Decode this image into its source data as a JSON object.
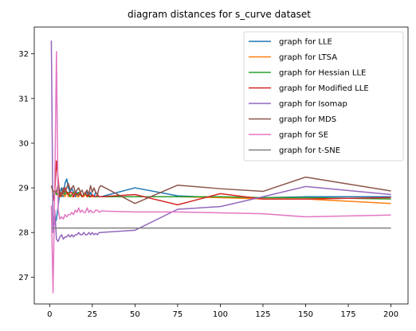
{
  "chart_data": {
    "type": "line",
    "title": "diagram distances for s_curve dataset",
    "xlabel": "",
    "ylabel": "",
    "xlim": [
      -9,
      210
    ],
    "ylim": [
      26.4,
      32.6
    ],
    "xticks": [
      0,
      25,
      50,
      75,
      100,
      125,
      150,
      175,
      200
    ],
    "yticks": [
      27,
      28,
      29,
      30,
      31,
      32
    ],
    "grid": false,
    "legend_position": "top-right",
    "series": [
      {
        "name": "graph for LLE",
        "color": "#1f77b4",
        "x": [
          2,
          3,
          4,
          5,
          6,
          7,
          8,
          9,
          10,
          11,
          12,
          13,
          14,
          15,
          16,
          17,
          18,
          19,
          20,
          21,
          22,
          23,
          24,
          25,
          26,
          27,
          28,
          29,
          30,
          50,
          75,
          100,
          125,
          150,
          200
        ],
        "y": [
          28.1,
          28.2,
          28.3,
          28.6,
          28.9,
          29.0,
          28.8,
          29.1,
          29.2,
          29.0,
          28.9,
          29.0,
          28.9,
          28.8,
          28.9,
          28.8,
          28.9,
          28.8,
          28.85,
          28.9,
          28.9,
          28.8,
          28.9,
          28.8,
          28.8,
          28.9,
          28.85,
          28.8,
          28.8,
          29.0,
          28.82,
          28.78,
          28.78,
          28.8,
          28.8
        ]
      },
      {
        "name": "graph for LTSA",
        "color": "#ff7f0e",
        "x": [
          2,
          3,
          4,
          5,
          6,
          7,
          8,
          9,
          10,
          11,
          12,
          13,
          14,
          15,
          16,
          17,
          18,
          19,
          20,
          21,
          22,
          23,
          24,
          25,
          26,
          27,
          28,
          29,
          30,
          50,
          75,
          100,
          125,
          150,
          200
        ],
        "y": [
          28.8,
          28.9,
          28.9,
          28.8,
          28.8,
          28.9,
          28.85,
          28.8,
          28.9,
          28.8,
          28.85,
          28.8,
          28.8,
          28.9,
          28.8,
          28.8,
          28.85,
          28.8,
          28.8,
          28.85,
          28.8,
          28.8,
          28.8,
          28.8,
          28.8,
          28.8,
          28.8,
          28.8,
          28.8,
          28.8,
          28.8,
          28.78,
          28.75,
          28.75,
          28.65
        ]
      },
      {
        "name": "graph for Hessian LLE",
        "color": "#2ca02c",
        "x": [
          2,
          3,
          4,
          5,
          6,
          7,
          8,
          9,
          10,
          11,
          12,
          13,
          14,
          15,
          16,
          17,
          18,
          19,
          20,
          21,
          22,
          23,
          24,
          25,
          26,
          27,
          28,
          29,
          30,
          50,
          75,
          100,
          125,
          150,
          200
        ],
        "y": [
          28.8,
          28.9,
          28.85,
          28.9,
          28.8,
          28.9,
          28.95,
          28.85,
          28.9,
          28.9,
          28.8,
          28.85,
          28.9,
          28.85,
          28.85,
          28.9,
          28.85,
          28.8,
          28.85,
          28.85,
          28.85,
          28.8,
          28.8,
          28.85,
          28.8,
          28.8,
          28.8,
          28.8,
          28.8,
          28.8,
          28.8,
          28.8,
          28.78,
          28.78,
          28.75
        ]
      },
      {
        "name": "graph for Modified LLE",
        "color": "#d62728",
        "x": [
          2,
          3,
          4,
          5,
          6,
          7,
          8,
          9,
          10,
          11,
          12,
          13,
          14,
          15,
          16,
          17,
          18,
          19,
          20,
          21,
          22,
          23,
          24,
          25,
          26,
          27,
          28,
          29,
          30,
          50,
          75,
          100,
          125,
          150,
          200
        ],
        "y": [
          28.7,
          28.9,
          29.6,
          29.2,
          28.8,
          28.9,
          28.9,
          29.0,
          28.9,
          28.85,
          28.9,
          28.9,
          28.8,
          28.9,
          28.85,
          28.85,
          28.9,
          28.8,
          28.85,
          28.9,
          28.8,
          28.85,
          28.8,
          28.85,
          28.8,
          28.8,
          28.85,
          28.8,
          28.8,
          28.85,
          28.62,
          28.87,
          28.75,
          28.75,
          28.78
        ]
      },
      {
        "name": "graph for Isomap",
        "color": "#9467bd",
        "x": [
          1,
          2,
          3,
          4,
          5,
          6,
          7,
          8,
          9,
          10,
          11,
          12,
          13,
          14,
          15,
          16,
          17,
          18,
          19,
          20,
          21,
          22,
          23,
          24,
          25,
          26,
          27,
          28,
          29,
          30,
          50,
          75,
          100,
          125,
          150,
          200
        ],
        "y": [
          32.3,
          28.0,
          28.5,
          27.85,
          27.8,
          27.9,
          27.95,
          27.85,
          27.9,
          27.9,
          27.95,
          27.9,
          27.95,
          27.9,
          27.95,
          27.95,
          28.0,
          27.95,
          27.95,
          28.0,
          27.95,
          27.95,
          28.0,
          27.95,
          28.0,
          27.95,
          27.98,
          27.95,
          28.0,
          28.0,
          28.05,
          28.52,
          28.58,
          28.8,
          29.03,
          28.85
        ]
      },
      {
        "name": "graph for MDS",
        "color": "#8c564b",
        "x": [
          1,
          2,
          3,
          4,
          5,
          6,
          7,
          8,
          9,
          10,
          11,
          12,
          13,
          14,
          15,
          16,
          17,
          18,
          19,
          20,
          21,
          22,
          23,
          24,
          25,
          26,
          27,
          28,
          29,
          30,
          50,
          75,
          100,
          125,
          150,
          200
        ],
        "y": [
          29.05,
          28.9,
          28.95,
          28.9,
          29.1,
          28.9,
          28.8,
          29.0,
          28.9,
          29.0,
          29.1,
          28.95,
          29.0,
          29.05,
          28.9,
          28.95,
          29.0,
          28.9,
          28.95,
          28.85,
          28.9,
          28.95,
          28.85,
          29.05,
          28.9,
          29.0,
          28.9,
          28.85,
          29.0,
          29.05,
          28.65,
          29.06,
          28.98,
          28.92,
          29.24,
          28.93
        ]
      },
      {
        "name": "graph for SE",
        "color": "#e377c2",
        "x": [
          1,
          2,
          3,
          4,
          5,
          6,
          7,
          8,
          9,
          10,
          11,
          12,
          13,
          14,
          15,
          16,
          17,
          18,
          19,
          20,
          21,
          22,
          23,
          24,
          25,
          26,
          27,
          28,
          29,
          30,
          50,
          75,
          100,
          125,
          150,
          200
        ],
        "y": [
          28.6,
          26.65,
          29.0,
          32.05,
          28.5,
          28.3,
          28.35,
          28.3,
          28.4,
          28.35,
          28.4,
          28.4,
          28.45,
          28.4,
          28.5,
          28.45,
          28.55,
          28.45,
          28.5,
          28.45,
          28.45,
          28.55,
          28.45,
          28.5,
          28.45,
          28.45,
          28.5,
          28.5,
          28.45,
          28.48,
          28.46,
          28.46,
          28.44,
          28.42,
          28.35,
          28.39
        ]
      },
      {
        "name": "graph for t-SNE",
        "color": "#7f7f7f",
        "x": [
          1,
          200
        ],
        "y": [
          28.1,
          28.1
        ]
      }
    ]
  }
}
